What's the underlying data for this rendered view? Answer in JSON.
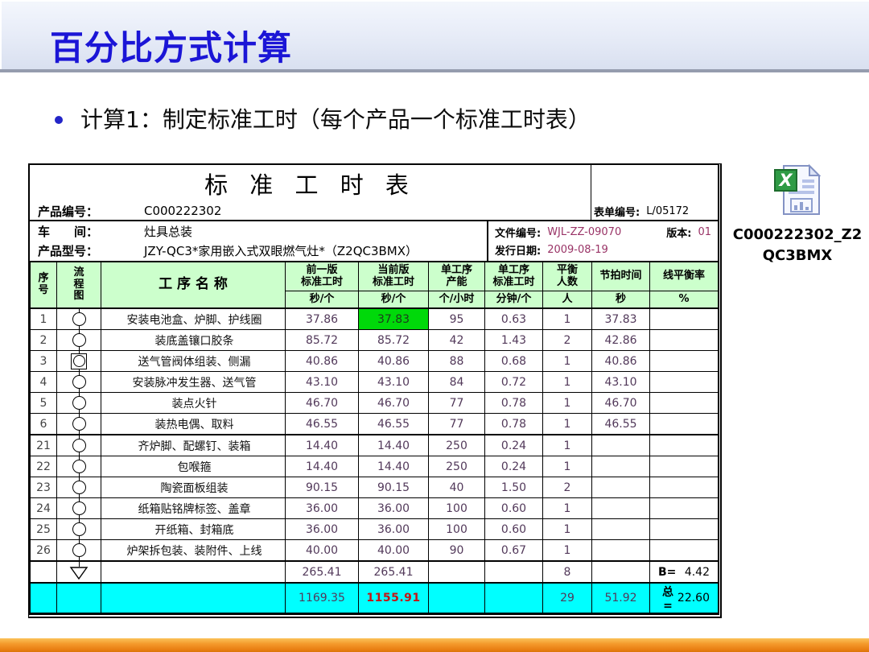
{
  "slide": {
    "title": "百分比方式计算",
    "bullet": "计算1：制定标准工时（每个产品一个标准工时表）"
  },
  "worksheet": {
    "title": "标 准 工 时 表",
    "meta": {
      "product_no_label": "产品编号：",
      "product_no": "C000222302",
      "form_no_label": "表单编号:",
      "form_no": "L/05172",
      "workshop_label": "车　　间：",
      "workshop": "灶具总装",
      "doc_no_label": "文件编号:",
      "doc_no": "WJL-ZZ-09070",
      "version_label": "版本:",
      "version": "01",
      "model_label": "产品型号：",
      "model": "JZY-QC3*家用嵌入式双眼燃气灶*（Z2QC3BMX）",
      "issue_date_label": "发行日期:",
      "issue_date": "2009-08-19"
    },
    "columns": {
      "no": "序\n号",
      "flow": "流\n程\n图",
      "name": "工 序 名 称",
      "prev": "前一版\n标准工时",
      "prev_unit": "秒/个",
      "curr": "当前版\n标准工时",
      "curr_unit": "秒/个",
      "capacity": "单工序\n产能",
      "capacity_unit": "个/小时",
      "unit_time": "单工序\n标准工时",
      "unit_time_unit": "分钟/个",
      "people": "平衡\n人数",
      "people_unit": "人",
      "takt": "节拍时间",
      "takt_unit": "秒",
      "balance": "线平衡率",
      "balance_unit": "%"
    },
    "rows": [
      {
        "no": "1",
        "flow": "circle",
        "name": "安装电池盒、炉脚、护线圈",
        "prev": "37.86",
        "curr": "37.83",
        "curr_highlight": true,
        "capacity": "95",
        "unit_time": "0.63",
        "people": "1",
        "takt": "37.83",
        "balance": ""
      },
      {
        "no": "2",
        "flow": "circle",
        "name": "装底盖镶口胶条",
        "prev": "85.72",
        "curr": "85.72",
        "capacity": "42",
        "unit_time": "1.43",
        "people": "2",
        "takt": "42.86",
        "balance": ""
      },
      {
        "no": "3",
        "flow": "circle-square",
        "name": "送气管阀体组装、侧漏",
        "prev": "40.86",
        "curr": "40.86",
        "capacity": "88",
        "unit_time": "0.68",
        "people": "1",
        "takt": "40.86",
        "balance": ""
      },
      {
        "no": "4",
        "flow": "circle",
        "name": "安装脉冲发生器、送气管",
        "prev": "43.10",
        "curr": "43.10",
        "capacity": "84",
        "unit_time": "0.72",
        "people": "1",
        "takt": "43.10",
        "balance": ""
      },
      {
        "no": "5",
        "flow": "circle",
        "name": "装点火针",
        "prev": "46.70",
        "curr": "46.70",
        "capacity": "77",
        "unit_time": "0.78",
        "people": "1",
        "takt": "46.70",
        "balance": ""
      },
      {
        "no": "6",
        "flow": "circle",
        "name": "装热电偶、取料",
        "prev": "46.55",
        "curr": "46.55",
        "capacity": "77",
        "unit_time": "0.78",
        "people": "1",
        "takt": "46.55",
        "balance": ""
      },
      {
        "no": "21",
        "flow": "circle",
        "name": "齐炉脚、配螺钉、装箱",
        "prev": "14.40",
        "curr": "14.40",
        "capacity": "250",
        "unit_time": "0.24",
        "people": "1",
        "takt": "",
        "balance": ""
      },
      {
        "no": "22",
        "flow": "circle",
        "name": "包喉箍",
        "prev": "14.40",
        "curr": "14.40",
        "capacity": "250",
        "unit_time": "0.24",
        "people": "1",
        "takt": "",
        "balance": ""
      },
      {
        "no": "23",
        "flow": "circle",
        "name": "陶瓷面板组装",
        "prev": "90.15",
        "curr": "90.15",
        "capacity": "40",
        "unit_time": "1.50",
        "people": "2",
        "takt": "",
        "balance": ""
      },
      {
        "no": "24",
        "flow": "circle",
        "name": "纸箱贴铭牌标签、盖章",
        "prev": "36.00",
        "curr": "36.00",
        "capacity": "100",
        "unit_time": "0.60",
        "people": "1",
        "takt": "",
        "balance": ""
      },
      {
        "no": "25",
        "flow": "circle",
        "name": "开纸箱、封箱底",
        "prev": "36.00",
        "curr": "36.00",
        "capacity": "100",
        "unit_time": "0.60",
        "people": "1",
        "takt": "",
        "balance": ""
      },
      {
        "no": "26",
        "flow": "circle",
        "name": "炉架拆包装、装附件、上线",
        "prev": "40.00",
        "curr": "40.00",
        "capacity": "90",
        "unit_time": "0.67",
        "people": "1",
        "takt": "",
        "balance": ""
      }
    ],
    "subtotal": {
      "prev": "265.41",
      "curr": "265.41",
      "people": "8",
      "balance_label": "B=",
      "balance_value": "4.42"
    },
    "total": {
      "prev": "1169.35",
      "curr": "1155.91",
      "people": "29",
      "takt": "51.92",
      "balance_label": "总=",
      "balance_value": "22.60"
    }
  },
  "file_object": {
    "icon": "excel-file-icon",
    "name_line1": "C000222302_Z2",
    "name_line2": "QC3BMX"
  },
  "colors": {
    "title_blue": "#1b15d6",
    "header_green": "#ccffcc",
    "std_time_yellow": "#ffff99",
    "highlight_green": "#00d90a",
    "subtotal_cyan_light": "#ccffff",
    "total_cyan": "#00ffff",
    "total_red": "#c41414",
    "meta_value_magenta": "#993366",
    "bottom_bar_orange": "#f08c1a"
  }
}
